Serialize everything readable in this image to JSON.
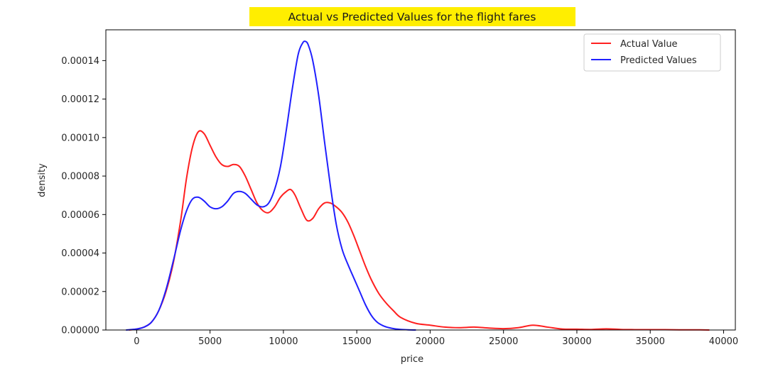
{
  "chart_data": {
    "type": "line",
    "title": "Actual vs Predicted Values for the flight fares",
    "title_background": "#ffee00",
    "xlabel": "price",
    "ylabel": "density",
    "xlim": [
      -2100,
      40800
    ],
    "ylim": [
      0,
      0.000156
    ],
    "xticks": [
      0,
      5000,
      10000,
      15000,
      20000,
      25000,
      30000,
      35000,
      40000
    ],
    "xtick_labels": [
      "0",
      "5000",
      "10000",
      "15000",
      "20000",
      "25000",
      "30000",
      "35000",
      "40000"
    ],
    "yticks": [
      0,
      2e-05,
      4e-05,
      6e-05,
      8e-05,
      0.0001,
      0.00012,
      0.00014
    ],
    "ytick_labels": [
      "0.00000",
      "0.00002",
      "0.00004",
      "0.00006",
      "0.00008",
      "0.00010",
      "0.00012",
      "0.00014"
    ],
    "grid": false,
    "legend_position": "top-right",
    "series": [
      {
        "name": "Actual Value",
        "color": "#ff2020",
        "x": [
          -500,
          0,
          500,
          1000,
          1500,
          2000,
          2500,
          3000,
          3400,
          3800,
          4200,
          4600,
          5000,
          5400,
          5800,
          6200,
          6600,
          7000,
          7400,
          7800,
          8200,
          8600,
          9000,
          9400,
          9800,
          10200,
          10500,
          10800,
          11200,
          11600,
          12000,
          12400,
          12800,
          13200,
          13600,
          14000,
          14400,
          14800,
          15200,
          15600,
          16000,
          16500,
          17000,
          17500,
          18000,
          19000,
          20000,
          21000,
          22000,
          23000,
          24000,
          25000,
          26000,
          27000,
          28000,
          29000,
          30000,
          31000,
          32000,
          33000,
          34000,
          35000,
          36000,
          37000,
          38000,
          39000
        ],
        "y": [
          0,
          5e-07,
          1.5e-06,
          4e-06,
          1e-05,
          2e-05,
          3.5e-05,
          5.7e-05,
          7.9e-05,
          9.5e-05,
          0.000103,
          0.000102,
          9.6e-05,
          9e-05,
          8.6e-05,
          8.5e-05,
          8.6e-05,
          8.5e-05,
          8e-05,
          7.3e-05,
          6.6e-05,
          6.2e-05,
          6.1e-05,
          6.4e-05,
          6.9e-05,
          7.2e-05,
          7.3e-05,
          7e-05,
          6.3e-05,
          5.7e-05,
          5.8e-05,
          6.3e-05,
          6.6e-05,
          6.6e-05,
          6.4e-05,
          6.1e-05,
          5.6e-05,
          4.9e-05,
          4.1e-05,
          3.3e-05,
          2.6e-05,
          1.9e-05,
          1.4e-05,
          1e-05,
          6.5e-06,
          3.5e-06,
          2.5e-06,
          1.5e-06,
          1.2e-06,
          1.5e-06,
          1e-06,
          7e-07,
          1.2e-06,
          2.5e-06,
          1.5e-06,
          5e-07,
          4e-07,
          3e-07,
          6e-07,
          3e-07,
          2e-07,
          2e-07,
          2e-07,
          1e-07,
          1e-07,
          0
        ]
      },
      {
        "name": "Predicted Values",
        "color": "#2020ff",
        "x": [
          -700,
          0,
          500,
          1000,
          1500,
          2000,
          2500,
          3000,
          3400,
          3800,
          4200,
          4600,
          5000,
          5400,
          5800,
          6200,
          6600,
          7000,
          7400,
          7800,
          8200,
          8600,
          9000,
          9400,
          9800,
          10200,
          10600,
          11000,
          11300,
          11500,
          11700,
          12000,
          12400,
          12800,
          13200,
          13600,
          14000,
          14400,
          14800,
          15200,
          15600,
          16000,
          16400,
          16800,
          17200,
          17600,
          18000,
          18500,
          19000
        ],
        "y": [
          0,
          5e-07,
          1.5e-06,
          4e-06,
          1e-05,
          2.1e-05,
          3.6e-05,
          5.2e-05,
          6.2e-05,
          6.8e-05,
          6.9e-05,
          6.7e-05,
          6.4e-05,
          6.3e-05,
          6.4e-05,
          6.7e-05,
          7.1e-05,
          7.2e-05,
          7.1e-05,
          6.8e-05,
          6.5e-05,
          6.4e-05,
          6.6e-05,
          7.3e-05,
          8.5e-05,
          0.000104,
          0.000125,
          0.000143,
          0.000149,
          0.00015,
          0.000148,
          0.00014,
          0.000122,
          9.8e-05,
          7.5e-05,
          5.5e-05,
          4.2e-05,
          3.4e-05,
          2.7e-05,
          2e-05,
          1.3e-05,
          7.5e-06,
          4e-06,
          2.2e-06,
          1.2e-06,
          6e-07,
          3e-07,
          1e-07,
          0
        ]
      }
    ]
  }
}
